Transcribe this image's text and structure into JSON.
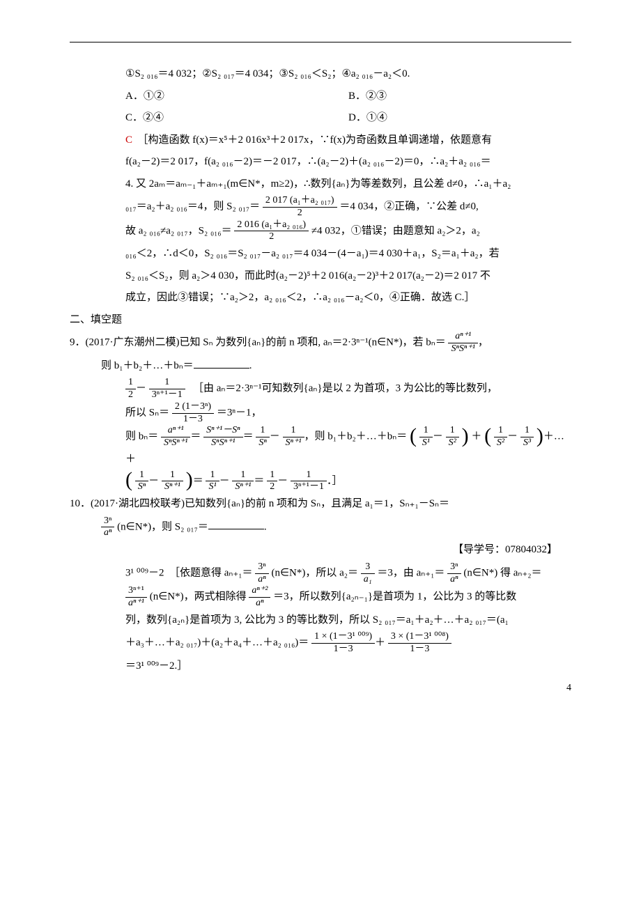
{
  "text_color": "#000000",
  "accent_color": "#cc0000",
  "background_color": "#ffffff",
  "font_family": "SimSun",
  "q8": {
    "statements": "①S₂ ₀₁₆＝4 032；②S₂ ₀₁₇＝4 034；③S₂ ₀₁₆＜S₂；④a₂ ₀₁₆－a₂＜0.",
    "optA": "A．①②",
    "optB": "B．②③",
    "optC": "C．②④",
    "optD": "D．①④",
    "ans_letter": "C",
    "sol1": "［构造函数 f(x)＝x⁵＋2 016x³＋2 017x，∵f(x)为奇函数且单调递增，依题意有",
    "sol2": "f(a₂－2)＝2 017，f(a₂ ₀₁₆－2)＝－2 017，∴(a₂－2)＋(a₂ ₀₁₆－2)＝0，∴a₂＋a₂ ₀₁₆＝",
    "sol3": "4. 又 2aₘ＝aₘ₋₁＋aₘ₊₁(m∈N*，m≥2)，∴数列{aₙ}为等差数列，且公差 d≠0，∴a₁＋a₂",
    "sol4a": "₀₁₇＝a₂＋a₂ ₀₁₆＝4，则 S₂ ₀₁₇＝",
    "sol4_frac_num": "2 017 (a₁＋a₂ ₀₁₇)",
    "sol4_frac_den": "2",
    "sol4b": "＝4 034，②正确，∵公差 d≠0,",
    "sol5a": "故 a₂ ₀₁₆≠a₂ ₀₁₇，S₂ ₀₁₆＝",
    "sol5_frac_num": "2 016 (a₁＋a₂ ₀₁₆)",
    "sol5_frac_den": "2",
    "sol5b": "≠4 032，①错误；由题意知 a₂＞2，a₂",
    "sol6": "₀₁₆＜2，∴d＜0，S₂ ₀₁₆＝S₂ ₀₁₇－a₂ ₀₁₇＝4 034－(4－a₁)＝4 030＋a₁，S₂＝a₁＋a₂，若",
    "sol7": "S₂ ₀₁₆＜S₂，则 a₂＞4 030，而此时(a₂－2)⁵＋2 016(a₂－2)³＋2 017(a₂－2)＝2 017 不",
    "sol8": "成立，因此③错误；∵a₂＞2，a₂ ₀₁₆＜2，∴a₂ ₀₁₆－a₂＜0，④正确．故选 C.］"
  },
  "section2": "二、填空题",
  "q9": {
    "stem1": "9．(2017·广东潮州二模)已知 Sₙ 为数列{aₙ}的前 n 项和, aₙ＝2·3ⁿ⁻¹(n∈N*)，若 bₙ＝",
    "stem_frac_num": "aⁿ⁺¹",
    "stem_frac_den": "SⁿSⁿ⁺¹",
    "stem1b": "，",
    "stem2": "则 b₁＋b₂＋…＋bₙ＝",
    "sol1_frac1_num": "1",
    "sol1_frac1_den": "2",
    "sol1_mid": "－",
    "sol1_frac2_num": "1",
    "sol1_frac2_den": "3ⁿ⁺¹－1",
    "sol1b": "［由 aₙ＝2·3ⁿ⁻¹可知数列{aₙ}是以 2 为首项，3 为公比的等比数列，",
    "sol2a": "所以 Sₙ＝",
    "sol2_frac_num": "2 (1－3ⁿ)",
    "sol2_frac_den": "1－3",
    "sol2b": "＝3ⁿ－1，",
    "sol3a": "则 bₙ＝",
    "sol3_frac1_num": "aⁿ⁺¹",
    "sol3_frac1_den": "SⁿSⁿ⁺¹",
    "sol3_eq1": "＝",
    "sol3_frac2_num": "Sⁿ⁺¹－Sⁿ",
    "sol3_frac2_den": "SⁿSⁿ⁺¹",
    "sol3_eq2": "＝",
    "sol3_frac3_num": "1",
    "sol3_frac3_den": "Sⁿ",
    "sol3_mid": "－",
    "sol3_frac4_num": "1",
    "sol3_frac4_den": "Sⁿ⁺¹",
    "sol3b": "，则 b₁＋b₂＋…＋bₙ＝",
    "sol3_p1a": "1",
    "sol3_p1b": "S¹",
    "sol3_p1c": "1",
    "sol3_p1d": "S²",
    "sol3_plus": "＋",
    "sol3_p2a": "1",
    "sol3_p2b": "S²",
    "sol3_p2c": "1",
    "sol3_p2d": "S³",
    "sol3_tail": "＋…＋",
    "sol4_p3a": "1",
    "sol4_p3b": "Sⁿ",
    "sol4_p3c": "1",
    "sol4_p3d": "Sⁿ⁺¹",
    "sol4_eq": "＝",
    "sol4_frac1_num": "1",
    "sol4_frac1_den": "S¹",
    "sol4_mid1": "－",
    "sol4_frac2_num": "1",
    "sol4_frac2_den": "Sⁿ⁺¹",
    "sol4_eq2": "＝",
    "sol4_frac3_num": "1",
    "sol4_frac3_den": "2",
    "sol4_mid2": "－",
    "sol4_frac4_num": "1",
    "sol4_frac4_den": "3ⁿ⁺¹－1",
    "sol4_tail": "．］"
  },
  "q10": {
    "stem1": "10．(2017·湖北四校联考)已知数列{aₙ}的前 n 项和为 Sₙ，且满足 a₁＝1，Sₙ₊₁－Sₙ＝",
    "stem_frac_num": "3ⁿ",
    "stem_frac_den": "aⁿ",
    "stem2": "(n∈N*)，则 S₂ ₀₁₇＝",
    "hint": "【导学号：07804032】",
    "sol1a": "3¹ ⁰⁰⁹－2　［依题意得 aₙ₊₁＝",
    "sol1_frac1_num": "3ⁿ",
    "sol1_frac1_den": "aⁿ",
    "sol1b": "(n∈N*)，所以 a₂＝",
    "sol1_frac2_num": "3",
    "sol1_frac2_den": "a₁",
    "sol1c": "＝3，由 aₙ₊₁＝",
    "sol1_frac3_num": "3ⁿ",
    "sol1_frac3_den": "aⁿ",
    "sol1d": "(n∈N*) 得 aₙ₊₂＝",
    "sol2_frac1_num": "3ⁿ⁺¹",
    "sol2_frac1_den": "aⁿ⁺¹",
    "sol2a": "(n∈N*)，两式相除得",
    "sol2_frac2_num": "aⁿ⁺²",
    "sol2_frac2_den": "aⁿ",
    "sol2b": "＝3，所以数列{a₂ₙ₋₁}是首项为 1，公比为 3 的等比数",
    "sol3": "列，数列{a₂ₙ}是首项为 3, 公比为 3 的等比数列，所以 S₂ ₀₁₇＝a₁＋a₂＋…＋a₂ ₀₁₇＝(a₁",
    "sol4a": "＋a₃＋…＋a₂ ₀₁₇)＋(a₂＋a₄＋…＋a₂ ₀₁₆)＝",
    "sol4_frac1_num": "1 × (1－3¹ ⁰⁰⁹)",
    "sol4_frac1_den": "1－3",
    "sol4_mid": "＋",
    "sol4_frac2_num": "3 × (1－3¹ ⁰⁰⁸)",
    "sol4_frac2_den": "1－3",
    "sol5": "＝3¹ ⁰⁰⁹－2.］"
  },
  "page_number": "4"
}
